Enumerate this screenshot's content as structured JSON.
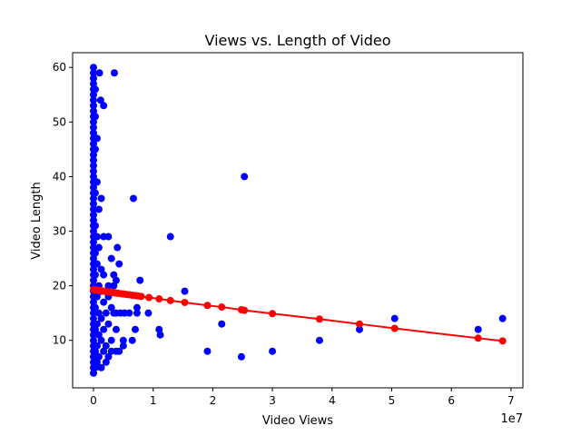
{
  "chart_data": {
    "type": "scatter",
    "title": "Views vs. Length of Video",
    "xlabel": "Video Views",
    "ylabel": "Video Length",
    "x_offset_label": "1e7",
    "xlim": [
      -3500000,
      72000000
    ],
    "ylim": [
      1.3,
      62.7
    ],
    "x_ticks": [
      0,
      10000000,
      20000000,
      30000000,
      40000000,
      50000000,
      60000000,
      70000000
    ],
    "x_tick_labels": [
      "0",
      "1",
      "2",
      "3",
      "4",
      "5",
      "6",
      "7"
    ],
    "y_ticks": [
      10,
      20,
      30,
      40,
      50,
      60
    ],
    "y_tick_labels": [
      "10",
      "20",
      "30",
      "40",
      "50",
      "60"
    ],
    "grid": false,
    "colors": {
      "observed": "#0000ff",
      "fitted": "#ff0000"
    },
    "observed_points": [
      [
        0,
        4
      ],
      [
        0,
        5
      ],
      [
        0,
        6
      ],
      [
        0,
        7
      ],
      [
        0,
        8
      ],
      [
        0,
        9
      ],
      [
        0,
        10
      ],
      [
        0,
        11
      ],
      [
        0,
        12
      ],
      [
        0,
        13
      ],
      [
        0,
        14
      ],
      [
        0,
        15
      ],
      [
        0,
        16
      ],
      [
        0,
        17
      ],
      [
        0,
        18
      ],
      [
        0,
        19
      ],
      [
        0,
        20
      ],
      [
        0,
        21
      ],
      [
        0,
        22
      ],
      [
        0,
        23
      ],
      [
        0,
        24
      ],
      [
        0,
        25
      ],
      [
        0,
        26
      ],
      [
        0,
        27
      ],
      [
        0,
        28
      ],
      [
        0,
        29
      ],
      [
        0,
        30
      ],
      [
        0,
        31
      ],
      [
        0,
        32
      ],
      [
        0,
        33
      ],
      [
        0,
        34
      ],
      [
        0,
        35
      ],
      [
        0,
        36
      ],
      [
        0,
        37
      ],
      [
        0,
        38
      ],
      [
        0,
        39
      ],
      [
        0,
        40
      ],
      [
        0,
        41
      ],
      [
        0,
        42
      ],
      [
        0,
        43
      ],
      [
        0,
        44
      ],
      [
        0,
        45
      ],
      [
        0,
        46
      ],
      [
        0,
        47
      ],
      [
        0,
        48
      ],
      [
        0,
        49
      ],
      [
        0,
        50
      ],
      [
        0,
        51
      ],
      [
        0,
        52
      ],
      [
        0,
        53
      ],
      [
        0,
        54
      ],
      [
        0,
        55
      ],
      [
        0,
        56
      ],
      [
        0,
        57
      ],
      [
        0,
        58
      ],
      [
        0,
        59
      ],
      [
        0,
        60
      ],
      [
        300000,
        5
      ],
      [
        300000,
        8
      ],
      [
        300000,
        12
      ],
      [
        300000,
        16
      ],
      [
        300000,
        22
      ],
      [
        300000,
        26
      ],
      [
        300000,
        31
      ],
      [
        300000,
        37
      ],
      [
        300000,
        45
      ],
      [
        300000,
        51
      ],
      [
        300000,
        56
      ],
      [
        600000,
        6
      ],
      [
        600000,
        9
      ],
      [
        600000,
        13
      ],
      [
        600000,
        18
      ],
      [
        600000,
        24
      ],
      [
        600000,
        29
      ],
      [
        600000,
        39
      ],
      [
        600000,
        47
      ],
      [
        900000,
        7
      ],
      [
        900000,
        11
      ],
      [
        900000,
        15
      ],
      [
        900000,
        20
      ],
      [
        900000,
        27
      ],
      [
        900000,
        34
      ],
      [
        1000000,
        59
      ],
      [
        1200000,
        54
      ],
      [
        1300000,
        5
      ],
      [
        1300000,
        10
      ],
      [
        1300000,
        14
      ],
      [
        1300000,
        19
      ],
      [
        1300000,
        23
      ],
      [
        1300000,
        36
      ],
      [
        1700000,
        53
      ],
      [
        1700000,
        8
      ],
      [
        1700000,
        12
      ],
      [
        1700000,
        17
      ],
      [
        1700000,
        22
      ],
      [
        1700000,
        29
      ],
      [
        2100000,
        6
      ],
      [
        2100000,
        9
      ],
      [
        2100000,
        15
      ],
      [
        2100000,
        19
      ],
      [
        2500000,
        7
      ],
      [
        2500000,
        13
      ],
      [
        2500000,
        18
      ],
      [
        2500000,
        20
      ],
      [
        2500000,
        29
      ],
      [
        3000000,
        8
      ],
      [
        3000000,
        10
      ],
      [
        3000000,
        16
      ],
      [
        3000000,
        25
      ],
      [
        3400000,
        15
      ],
      [
        3400000,
        20
      ],
      [
        3400000,
        22
      ],
      [
        3500000,
        59
      ],
      [
        3800000,
        8
      ],
      [
        3800000,
        12
      ],
      [
        3800000,
        15
      ],
      [
        3800000,
        21
      ],
      [
        4000000,
        27
      ],
      [
        4300000,
        8
      ],
      [
        4300000,
        24
      ],
      [
        4500000,
        15
      ],
      [
        5000000,
        9
      ],
      [
        5000000,
        10
      ],
      [
        5200000,
        15
      ],
      [
        6000000,
        15
      ],
      [
        6500000,
        10
      ],
      [
        6700000,
        36
      ],
      [
        7000000,
        12
      ],
      [
        7300000,
        15
      ],
      [
        7300000,
        16
      ],
      [
        7800000,
        21
      ],
      [
        9200000,
        15
      ],
      [
        11000000,
        12
      ],
      [
        11200000,
        11
      ],
      [
        12900000,
        29
      ],
      [
        15300000,
        19
      ],
      [
        19100000,
        8
      ],
      [
        21500000,
        13
      ],
      [
        24800000,
        7
      ],
      [
        25300000,
        40
      ],
      [
        30000000,
        8
      ],
      [
        37900000,
        10
      ],
      [
        44600000,
        12
      ],
      [
        50500000,
        14
      ],
      [
        64500000,
        12
      ],
      [
        68600000,
        14
      ]
    ],
    "fitted_points": [
      [
        0,
        19.3
      ],
      [
        300000,
        19.25
      ],
      [
        600000,
        19.2
      ],
      [
        900000,
        19.15
      ],
      [
        1200000,
        19.1
      ],
      [
        1500000,
        19.05
      ],
      [
        1800000,
        19.0
      ],
      [
        2100000,
        18.95
      ],
      [
        2400000,
        18.9
      ],
      [
        2700000,
        18.85
      ],
      [
        3000000,
        18.8
      ],
      [
        3300000,
        18.75
      ],
      [
        3600000,
        18.7
      ],
      [
        3900000,
        18.65
      ],
      [
        4200000,
        18.6
      ],
      [
        4600000,
        18.55
      ],
      [
        5000000,
        18.5
      ],
      [
        5500000,
        18.42
      ],
      [
        6000000,
        18.35
      ],
      [
        6500000,
        18.27
      ],
      [
        7000000,
        18.2
      ],
      [
        7500000,
        18.12
      ],
      [
        8000000,
        18.05
      ],
      [
        9300000,
        17.85
      ],
      [
        11000000,
        17.6
      ],
      [
        12900000,
        17.3
      ],
      [
        15300000,
        16.95
      ],
      [
        19100000,
        16.4
      ],
      [
        21500000,
        16.1
      ],
      [
        24800000,
        15.6
      ],
      [
        25300000,
        15.5
      ],
      [
        30000000,
        14.9
      ],
      [
        37900000,
        13.9
      ],
      [
        44600000,
        13.0
      ],
      [
        50500000,
        12.2
      ],
      [
        64500000,
        10.4
      ],
      [
        68600000,
        9.9
      ]
    ]
  }
}
